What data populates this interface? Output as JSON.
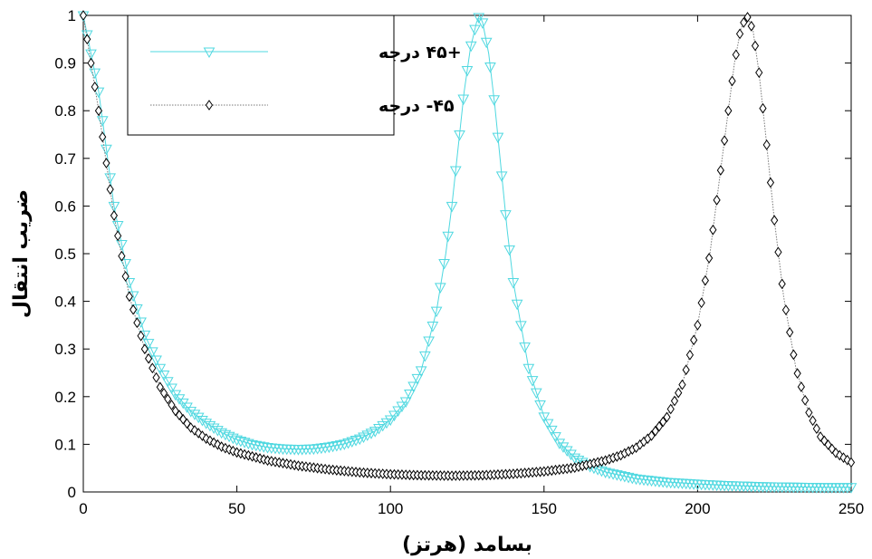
{
  "chart_data": {
    "type": "line",
    "xlabel": "بسامد (هرتز)",
    "ylabel": "ضریب انتقال",
    "xlim": [
      0,
      250
    ],
    "ylim": [
      0,
      1
    ],
    "x_ticks": [
      "0",
      "50",
      "100",
      "150",
      "200",
      "250"
    ],
    "y_ticks": [
      "0",
      "0.1",
      "0.2",
      "0.3",
      "0.4",
      "0.5",
      "0.6",
      "0.7",
      "0.8",
      "0.9",
      "1"
    ],
    "grid": false,
    "legend_position": "top-left",
    "series": [
      {
        "name": "+۴۵ درجه",
        "color": "#4fd8e0",
        "marker": "triangle-down",
        "line": "solid",
        "x": [
          0,
          5,
          10,
          15,
          20,
          25,
          30,
          35,
          40,
          45,
          50,
          55,
          60,
          65,
          70,
          75,
          80,
          85,
          90,
          95,
          100,
          105,
          110,
          115,
          118,
          120,
          122,
          124,
          126,
          128,
          129,
          130,
          132,
          134,
          136,
          138,
          140,
          145,
          150,
          155,
          160,
          165,
          170,
          180,
          190,
          200,
          210,
          220,
          230,
          240,
          250
        ],
        "y": [
          1.0,
          0.84,
          0.6,
          0.44,
          0.33,
          0.26,
          0.205,
          0.17,
          0.145,
          0.125,
          0.11,
          0.1,
          0.094,
          0.091,
          0.09,
          0.091,
          0.095,
          0.101,
          0.112,
          0.128,
          0.152,
          0.19,
          0.255,
          0.38,
          0.5,
          0.6,
          0.72,
          0.84,
          0.93,
          0.985,
          1.0,
          0.985,
          0.92,
          0.81,
          0.68,
          0.55,
          0.44,
          0.26,
          0.158,
          0.103,
          0.072,
          0.054,
          0.042,
          0.028,
          0.021,
          0.017,
          0.014,
          0.012,
          0.011,
          0.01,
          0.01
        ]
      },
      {
        "name": "۴۵- درجه",
        "color": "#777777",
        "marker": "diamond",
        "line": "dotted",
        "x": [
          0,
          5,
          10,
          15,
          20,
          25,
          30,
          35,
          40,
          45,
          50,
          60,
          70,
          80,
          90,
          100,
          110,
          120,
          130,
          140,
          150,
          160,
          170,
          175,
          180,
          185,
          190,
          195,
          200,
          204,
          208,
          210,
          212,
          214,
          216,
          218,
          220,
          222,
          225,
          228,
          232,
          236,
          240,
          245,
          250
        ],
        "y": [
          1.0,
          0.8,
          0.58,
          0.41,
          0.3,
          0.22,
          0.17,
          0.135,
          0.112,
          0.095,
          0.083,
          0.066,
          0.055,
          0.047,
          0.041,
          0.037,
          0.035,
          0.034,
          0.035,
          0.038,
          0.043,
          0.051,
          0.066,
          0.077,
          0.093,
          0.118,
          0.157,
          0.225,
          0.35,
          0.5,
          0.7,
          0.8,
          0.9,
          0.97,
          1.0,
          0.97,
          0.88,
          0.76,
          0.57,
          0.41,
          0.26,
          0.17,
          0.116,
          0.082,
          0.062
        ]
      }
    ]
  }
}
